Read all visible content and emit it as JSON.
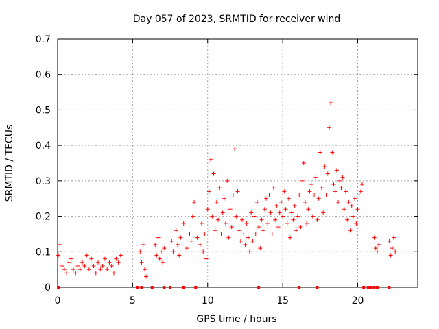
{
  "chart_data": {
    "type": "scatter",
    "title": "Day 057 of 2023, SRMTID for receiver wind",
    "xlabel": "GPS time / hours",
    "ylabel": "SRMTID / TECUs",
    "xlim": [
      0,
      24
    ],
    "ylim": [
      0,
      0.7
    ],
    "xticks": [
      0,
      5,
      10,
      15,
      20
    ],
    "xtick_labels": [
      "0",
      "5",
      "10",
      "15",
      "20"
    ],
    "yticks": [
      0,
      0.1,
      0.2,
      0.3,
      0.4,
      0.5,
      0.6,
      0.7
    ],
    "ytick_labels": [
      "0",
      "0.1",
      "0.2",
      "0.3",
      "0.4",
      "0.5",
      "0.6",
      "0.7"
    ],
    "grid": true,
    "marker": "+",
    "color": "#ff0000",
    "series": [
      {
        "name": "SRMTID",
        "x": [
          0.05,
          0.15,
          0.3,
          0.45,
          0.6,
          0.75,
          0.9,
          1.05,
          1.2,
          1.35,
          1.5,
          1.65,
          1.8,
          1.95,
          2.1,
          2.25,
          2.4,
          2.55,
          2.7,
          2.85,
          3.0,
          3.15,
          3.3,
          3.45,
          3.6,
          3.75,
          3.9,
          4.05,
          4.2,
          5.5,
          5.6,
          5.7,
          5.8,
          5.9,
          6.5,
          6.6,
          6.7,
          6.8,
          6.9,
          7.0,
          7.1,
          7.6,
          7.7,
          7.9,
          8.0,
          8.1,
          8.2,
          8.4,
          8.6,
          8.8,
          8.9,
          9.0,
          9.1,
          9.3,
          9.5,
          9.6,
          9.7,
          9.8,
          9.9,
          10.0,
          10.1,
          10.2,
          10.3,
          10.4,
          10.5,
          10.6,
          10.7,
          10.8,
          10.9,
          11.0,
          11.1,
          11.2,
          11.3,
          11.4,
          11.5,
          11.6,
          11.7,
          11.8,
          11.9,
          12.0,
          12.1,
          12.2,
          12.3,
          12.4,
          12.5,
          12.6,
          12.7,
          12.8,
          12.9,
          13.0,
          13.1,
          13.2,
          13.3,
          13.4,
          13.5,
          13.6,
          13.7,
          13.8,
          13.9,
          14.0,
          14.1,
          14.2,
          14.3,
          14.4,
          14.5,
          14.6,
          14.7,
          14.8,
          14.9,
          15.0,
          15.1,
          15.2,
          15.3,
          15.4,
          15.5,
          15.6,
          15.7,
          15.8,
          15.9,
          16.0,
          16.1,
          16.2,
          16.3,
          16.4,
          16.5,
          16.6,
          16.7,
          16.8,
          16.9,
          17.0,
          17.1,
          17.2,
          17.3,
          17.4,
          17.5,
          17.6,
          17.7,
          17.8,
          17.9,
          18.0,
          18.1,
          18.2,
          18.3,
          18.4,
          18.5,
          18.6,
          18.7,
          18.8,
          18.9,
          19.0,
          19.1,
          19.2,
          19.3,
          19.4,
          19.5,
          19.6,
          19.7,
          19.8,
          19.9,
          20.0,
          20.1,
          20.2,
          20.3,
          21.1,
          21.2,
          21.3,
          21.4,
          22.1,
          22.2,
          22.3,
          22.4,
          22.5
        ],
        "y": [
          0.09,
          0.12,
          0.06,
          0.05,
          0.04,
          0.07,
          0.08,
          0.05,
          0.04,
          0.06,
          0.05,
          0.07,
          0.06,
          0.09,
          0.05,
          0.08,
          0.06,
          0.04,
          0.07,
          0.05,
          0.06,
          0.08,
          0.05,
          0.07,
          0.06,
          0.04,
          0.08,
          0.07,
          0.09,
          0.1,
          0.07,
          0.12,
          0.05,
          0.03,
          0.12,
          0.09,
          0.14,
          0.08,
          0.1,
          0.07,
          0.11,
          0.13,
          0.1,
          0.16,
          0.12,
          0.09,
          0.14,
          0.18,
          0.11,
          0.15,
          0.13,
          0.2,
          0.24,
          0.14,
          0.12,
          0.18,
          0.1,
          0.15,
          0.08,
          0.22,
          0.27,
          0.36,
          0.2,
          0.32,
          0.16,
          0.24,
          0.19,
          0.28,
          0.15,
          0.21,
          0.25,
          0.18,
          0.3,
          0.14,
          0.22,
          0.17,
          0.26,
          0.39,
          0.2,
          0.27,
          0.16,
          0.13,
          0.19,
          0.15,
          0.12,
          0.18,
          0.14,
          0.1,
          0.21,
          0.13,
          0.2,
          0.15,
          0.24,
          0.17,
          0.11,
          0.19,
          0.16,
          0.22,
          0.25,
          0.18,
          0.26,
          0.21,
          0.15,
          0.28,
          0.19,
          0.23,
          0.17,
          0.21,
          0.24,
          0.2,
          0.27,
          0.22,
          0.18,
          0.25,
          0.14,
          0.21,
          0.19,
          0.23,
          0.16,
          0.2,
          0.26,
          0.17,
          0.3,
          0.35,
          0.24,
          0.18,
          0.22,
          0.27,
          0.29,
          0.2,
          0.26,
          0.31,
          0.19,
          0.25,
          0.38,
          0.28,
          0.21,
          0.34,
          0.26,
          0.32,
          0.45,
          0.52,
          0.38,
          0.29,
          0.27,
          0.33,
          0.24,
          0.3,
          0.28,
          0.31,
          0.22,
          0.27,
          0.19,
          0.24,
          0.16,
          0.23,
          0.2,
          0.25,
          0.18,
          0.22,
          0.26,
          0.27,
          0.29,
          0.14,
          0.11,
          0.1,
          0.12,
          0.13,
          0.09,
          0.11,
          0.14,
          0.1
        ]
      }
    ],
    "gap_markers_x": [
      0.05,
      5.3,
      5.6,
      6.3,
      7.1,
      7.5,
      8.4,
      9.2,
      13.4,
      16.1,
      17.3,
      20.4,
      20.7,
      20.9,
      21.1,
      21.3,
      22.1
    ]
  }
}
